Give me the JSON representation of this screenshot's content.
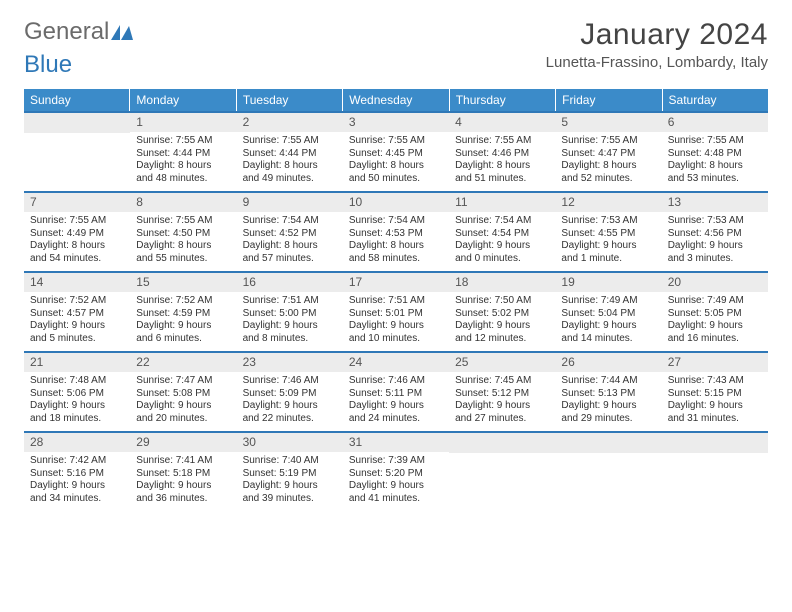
{
  "brand": {
    "part1": "General",
    "part2": "Blue"
  },
  "title": "January 2024",
  "location": "Lunetta-Frassino, Lombardy, Italy",
  "weekdays": [
    "Sunday",
    "Monday",
    "Tuesday",
    "Wednesday",
    "Thursday",
    "Friday",
    "Saturday"
  ],
  "colors": {
    "header_bg": "#3b8bc9",
    "header_text": "#ffffff",
    "week_border": "#2f78b7",
    "daynum_bg": "#ececec",
    "text": "#333333",
    "logo_gray": "#6b6b6b",
    "logo_blue": "#2f78b7"
  },
  "typography": {
    "title_fontsize": 30,
    "location_fontsize": 15,
    "weekday_fontsize": 12,
    "daynum_fontsize": 12,
    "body_fontsize": 10
  },
  "weeks": [
    [
      {
        "num": "",
        "lines": [
          "",
          "",
          "",
          ""
        ]
      },
      {
        "num": "1",
        "lines": [
          "Sunrise: 7:55 AM",
          "Sunset: 4:44 PM",
          "Daylight: 8 hours",
          "and 48 minutes."
        ]
      },
      {
        "num": "2",
        "lines": [
          "Sunrise: 7:55 AM",
          "Sunset: 4:44 PM",
          "Daylight: 8 hours",
          "and 49 minutes."
        ]
      },
      {
        "num": "3",
        "lines": [
          "Sunrise: 7:55 AM",
          "Sunset: 4:45 PM",
          "Daylight: 8 hours",
          "and 50 minutes."
        ]
      },
      {
        "num": "4",
        "lines": [
          "Sunrise: 7:55 AM",
          "Sunset: 4:46 PM",
          "Daylight: 8 hours",
          "and 51 minutes."
        ]
      },
      {
        "num": "5",
        "lines": [
          "Sunrise: 7:55 AM",
          "Sunset: 4:47 PM",
          "Daylight: 8 hours",
          "and 52 minutes."
        ]
      },
      {
        "num": "6",
        "lines": [
          "Sunrise: 7:55 AM",
          "Sunset: 4:48 PM",
          "Daylight: 8 hours",
          "and 53 minutes."
        ]
      }
    ],
    [
      {
        "num": "7",
        "lines": [
          "Sunrise: 7:55 AM",
          "Sunset: 4:49 PM",
          "Daylight: 8 hours",
          "and 54 minutes."
        ]
      },
      {
        "num": "8",
        "lines": [
          "Sunrise: 7:55 AM",
          "Sunset: 4:50 PM",
          "Daylight: 8 hours",
          "and 55 minutes."
        ]
      },
      {
        "num": "9",
        "lines": [
          "Sunrise: 7:54 AM",
          "Sunset: 4:52 PM",
          "Daylight: 8 hours",
          "and 57 minutes."
        ]
      },
      {
        "num": "10",
        "lines": [
          "Sunrise: 7:54 AM",
          "Sunset: 4:53 PM",
          "Daylight: 8 hours",
          "and 58 minutes."
        ]
      },
      {
        "num": "11",
        "lines": [
          "Sunrise: 7:54 AM",
          "Sunset: 4:54 PM",
          "Daylight: 9 hours",
          "and 0 minutes."
        ]
      },
      {
        "num": "12",
        "lines": [
          "Sunrise: 7:53 AM",
          "Sunset: 4:55 PM",
          "Daylight: 9 hours",
          "and 1 minute."
        ]
      },
      {
        "num": "13",
        "lines": [
          "Sunrise: 7:53 AM",
          "Sunset: 4:56 PM",
          "Daylight: 9 hours",
          "and 3 minutes."
        ]
      }
    ],
    [
      {
        "num": "14",
        "lines": [
          "Sunrise: 7:52 AM",
          "Sunset: 4:57 PM",
          "Daylight: 9 hours",
          "and 5 minutes."
        ]
      },
      {
        "num": "15",
        "lines": [
          "Sunrise: 7:52 AM",
          "Sunset: 4:59 PM",
          "Daylight: 9 hours",
          "and 6 minutes."
        ]
      },
      {
        "num": "16",
        "lines": [
          "Sunrise: 7:51 AM",
          "Sunset: 5:00 PM",
          "Daylight: 9 hours",
          "and 8 minutes."
        ]
      },
      {
        "num": "17",
        "lines": [
          "Sunrise: 7:51 AM",
          "Sunset: 5:01 PM",
          "Daylight: 9 hours",
          "and 10 minutes."
        ]
      },
      {
        "num": "18",
        "lines": [
          "Sunrise: 7:50 AM",
          "Sunset: 5:02 PM",
          "Daylight: 9 hours",
          "and 12 minutes."
        ]
      },
      {
        "num": "19",
        "lines": [
          "Sunrise: 7:49 AM",
          "Sunset: 5:04 PM",
          "Daylight: 9 hours",
          "and 14 minutes."
        ]
      },
      {
        "num": "20",
        "lines": [
          "Sunrise: 7:49 AM",
          "Sunset: 5:05 PM",
          "Daylight: 9 hours",
          "and 16 minutes."
        ]
      }
    ],
    [
      {
        "num": "21",
        "lines": [
          "Sunrise: 7:48 AM",
          "Sunset: 5:06 PM",
          "Daylight: 9 hours",
          "and 18 minutes."
        ]
      },
      {
        "num": "22",
        "lines": [
          "Sunrise: 7:47 AM",
          "Sunset: 5:08 PM",
          "Daylight: 9 hours",
          "and 20 minutes."
        ]
      },
      {
        "num": "23",
        "lines": [
          "Sunrise: 7:46 AM",
          "Sunset: 5:09 PM",
          "Daylight: 9 hours",
          "and 22 minutes."
        ]
      },
      {
        "num": "24",
        "lines": [
          "Sunrise: 7:46 AM",
          "Sunset: 5:11 PM",
          "Daylight: 9 hours",
          "and 24 minutes."
        ]
      },
      {
        "num": "25",
        "lines": [
          "Sunrise: 7:45 AM",
          "Sunset: 5:12 PM",
          "Daylight: 9 hours",
          "and 27 minutes."
        ]
      },
      {
        "num": "26",
        "lines": [
          "Sunrise: 7:44 AM",
          "Sunset: 5:13 PM",
          "Daylight: 9 hours",
          "and 29 minutes."
        ]
      },
      {
        "num": "27",
        "lines": [
          "Sunrise: 7:43 AM",
          "Sunset: 5:15 PM",
          "Daylight: 9 hours",
          "and 31 minutes."
        ]
      }
    ],
    [
      {
        "num": "28",
        "lines": [
          "Sunrise: 7:42 AM",
          "Sunset: 5:16 PM",
          "Daylight: 9 hours",
          "and 34 minutes."
        ]
      },
      {
        "num": "29",
        "lines": [
          "Sunrise: 7:41 AM",
          "Sunset: 5:18 PM",
          "Daylight: 9 hours",
          "and 36 minutes."
        ]
      },
      {
        "num": "30",
        "lines": [
          "Sunrise: 7:40 AM",
          "Sunset: 5:19 PM",
          "Daylight: 9 hours",
          "and 39 minutes."
        ]
      },
      {
        "num": "31",
        "lines": [
          "Sunrise: 7:39 AM",
          "Sunset: 5:20 PM",
          "Daylight: 9 hours",
          "and 41 minutes."
        ]
      },
      {
        "num": "",
        "lines": [
          "",
          "",
          "",
          ""
        ]
      },
      {
        "num": "",
        "lines": [
          "",
          "",
          "",
          ""
        ]
      },
      {
        "num": "",
        "lines": [
          "",
          "",
          "",
          ""
        ]
      }
    ]
  ]
}
